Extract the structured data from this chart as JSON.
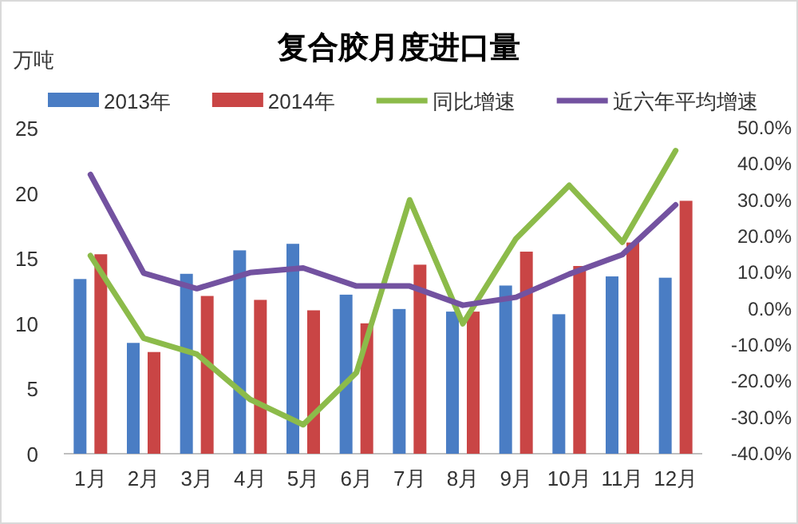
{
  "chart_data": {
    "type": "bar",
    "title": "复合胶月度进口量",
    "ylabel": "万吨",
    "categories": [
      "1月",
      "2月",
      "3月",
      "4月",
      "5月",
      "6月",
      "7月",
      "8月",
      "9月",
      "10月",
      "11月",
      "12月"
    ],
    "series": [
      {
        "name": "2013年",
        "color": "#4a7dc4",
        "values": [
          13.4,
          8.5,
          13.8,
          15.6,
          16.1,
          12.2,
          11.1,
          10.9,
          12.9,
          10.7,
          13.6,
          13.5
        ]
      },
      {
        "name": "2014年",
        "color": "#c94545",
        "values": [
          15.3,
          7.8,
          12.1,
          11.8,
          11.0,
          10.0,
          14.5,
          10.9,
          15.5,
          14.4,
          16.2,
          19.4
        ]
      },
      {
        "name": "同比增速",
        "type": "line",
        "axis": "y2",
        "color": "#8cbb4a",
        "values": [
          14.7,
          -8.1,
          -12.5,
          -25,
          -32,
          -17.6,
          30.1,
          -4.1,
          19.4,
          34.1,
          18.4,
          43.7
        ]
      },
      {
        "name": "近六年平均增速",
        "type": "line",
        "axis": "y2",
        "color": "#7352a0",
        "values": [
          37.1,
          9.9,
          5.6,
          10,
          11.3,
          6.3,
          6.3,
          1.0,
          3.2,
          9.6,
          15,
          28.7
        ]
      }
    ],
    "ylim": [
      0,
      25
    ],
    "yticks": [
      0,
      5,
      10,
      15,
      20,
      25
    ],
    "y2lim": [
      -40,
      50
    ],
    "y2ticks": [
      {
        "value": -40,
        "label": "-40.0%"
      },
      {
        "value": -30,
        "label": "-30.0%"
      },
      {
        "value": -20,
        "label": "-20.0%"
      },
      {
        "value": -10,
        "label": "-10.0%"
      },
      {
        "value": 0,
        "label": "0.0%"
      },
      {
        "value": 10,
        "label": "10.0%"
      },
      {
        "value": 20,
        "label": "20.0%"
      },
      {
        "value": 30,
        "label": "30.0%"
      },
      {
        "value": 40,
        "label": "40.0%"
      },
      {
        "value": 50,
        "label": "50.0%"
      }
    ],
    "legend": "top",
    "grid": false,
    "marker": "none",
    "line_style": "solid"
  }
}
